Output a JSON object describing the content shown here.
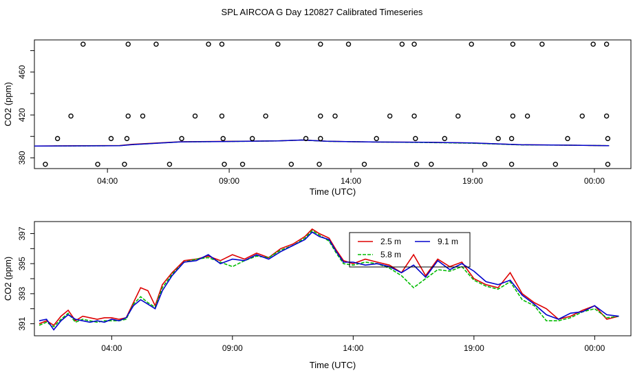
{
  "figure": {
    "title": "SPL AIRCOA G  Day 120827  Calibrated Timeseries"
  },
  "chart_data": [
    {
      "type": "scatter",
      "ylabel": "CO2 (ppm)",
      "xlabel": "Time (UTC)",
      "xlim": [
        0,
        24.5
      ],
      "ylim": [
        370,
        490
      ],
      "x_ticks": [
        3,
        8,
        13,
        18,
        23
      ],
      "x_tick_labels": [
        "04:00",
        "09:00",
        "14:00",
        "19:00",
        "00:00"
      ],
      "y_ticks": [
        380,
        420,
        460
      ],
      "y_tick_labels": [
        "380",
        "420",
        "460"
      ],
      "grid": false,
      "colors": {
        "2.5 m": "#dd0000",
        "5.8 m": "#00bb00",
        "9.1 m": "#0000cc",
        "markers": "#000000"
      },
      "markers": [
        {
          "x": 2.0,
          "y": 486
        },
        {
          "x": 3.85,
          "y": 486
        },
        {
          "x": 5.0,
          "y": 486
        },
        {
          "x": 7.15,
          "y": 486
        },
        {
          "x": 7.7,
          "y": 486
        },
        {
          "x": 10.0,
          "y": 486
        },
        {
          "x": 11.75,
          "y": 486
        },
        {
          "x": 12.9,
          "y": 486
        },
        {
          "x": 15.1,
          "y": 486
        },
        {
          "x": 15.6,
          "y": 486
        },
        {
          "x": 17.95,
          "y": 486
        },
        {
          "x": 19.65,
          "y": 486
        },
        {
          "x": 20.85,
          "y": 486
        },
        {
          "x": 22.95,
          "y": 486
        },
        {
          "x": 23.5,
          "y": 486
        },
        {
          "x": 1.5,
          "y": 419
        },
        {
          "x": 3.85,
          "y": 419
        },
        {
          "x": 4.45,
          "y": 419
        },
        {
          "x": 6.6,
          "y": 419
        },
        {
          "x": 7.7,
          "y": 419
        },
        {
          "x": 9.5,
          "y": 419
        },
        {
          "x": 11.75,
          "y": 419
        },
        {
          "x": 12.35,
          "y": 419
        },
        {
          "x": 14.6,
          "y": 419
        },
        {
          "x": 15.6,
          "y": 419
        },
        {
          "x": 17.4,
          "y": 419
        },
        {
          "x": 19.65,
          "y": 419
        },
        {
          "x": 20.25,
          "y": 419
        },
        {
          "x": 22.5,
          "y": 419
        },
        {
          "x": 23.5,
          "y": 419
        },
        {
          "x": 0.95,
          "y": 398
        },
        {
          "x": 3.15,
          "y": 398
        },
        {
          "x": 3.8,
          "y": 398
        },
        {
          "x": 6.05,
          "y": 398
        },
        {
          "x": 7.75,
          "y": 398
        },
        {
          "x": 8.95,
          "y": 398
        },
        {
          "x": 11.15,
          "y": 398
        },
        {
          "x": 11.75,
          "y": 398
        },
        {
          "x": 14.05,
          "y": 398
        },
        {
          "x": 15.65,
          "y": 398
        },
        {
          "x": 16.85,
          "y": 398
        },
        {
          "x": 19.05,
          "y": 398
        },
        {
          "x": 19.6,
          "y": 398
        },
        {
          "x": 21.9,
          "y": 398
        },
        {
          "x": 23.55,
          "y": 398
        },
        {
          "x": 0.45,
          "y": 374
        },
        {
          "x": 2.6,
          "y": 374
        },
        {
          "x": 3.7,
          "y": 374
        },
        {
          "x": 5.55,
          "y": 374
        },
        {
          "x": 7.8,
          "y": 374
        },
        {
          "x": 8.55,
          "y": 374
        },
        {
          "x": 10.55,
          "y": 374
        },
        {
          "x": 11.7,
          "y": 374
        },
        {
          "x": 13.55,
          "y": 374
        },
        {
          "x": 15.7,
          "y": 374
        },
        {
          "x": 16.3,
          "y": 374
        },
        {
          "x": 18.5,
          "y": 374
        },
        {
          "x": 19.6,
          "y": 374
        },
        {
          "x": 21.4,
          "y": 374
        },
        {
          "x": 23.55,
          "y": 374
        }
      ],
      "series": [
        {
          "name": "2.5 m",
          "color": "#dd0000",
          "x": [
            0,
            2,
            3.5,
            4,
            6,
            8,
            10,
            11,
            12,
            14,
            16,
            18,
            20,
            22,
            23.6
          ],
          "values": [
            391,
            391.3,
            391.5,
            392.6,
            395.0,
            395.4,
            395.8,
            396.6,
            395.5,
            394.8,
            394.6,
            393.8,
            392.2,
            391.8,
            391.4
          ]
        },
        {
          "name": "5.8 m",
          "color": "#00bb00",
          "x": [
            0,
            2,
            3.5,
            4,
            6,
            8,
            10,
            11,
            12,
            14,
            16,
            18,
            20,
            22,
            23.6
          ],
          "values": [
            391,
            391.2,
            391.4,
            392.3,
            394.9,
            395.3,
            395.8,
            396.6,
            395.4,
            394.8,
            394.3,
            393.6,
            392.1,
            391.8,
            391.4
          ]
        },
        {
          "name": "9.1 m",
          "color": "#0000cc",
          "x": [
            0,
            2,
            3.5,
            4,
            6,
            8,
            10,
            11,
            12,
            14,
            16,
            18,
            20,
            22,
            23.6
          ],
          "values": [
            391,
            391.2,
            391.4,
            392.3,
            394.9,
            395.3,
            395.8,
            396.6,
            395.5,
            394.8,
            394.6,
            393.9,
            392.2,
            391.8,
            391.4
          ]
        }
      ]
    },
    {
      "type": "line",
      "ylabel": "CO2 (ppm)",
      "xlabel": "Time (UTC)",
      "xlim": [
        -0.2,
        24.5
      ],
      "ylim": [
        390.2,
        397.8
      ],
      "x_ticks": [
        3,
        8,
        13,
        18,
        23
      ],
      "x_tick_labels": [
        "04:00",
        "09:00",
        "14:00",
        "19:00",
        "00:00"
      ],
      "y_ticks": [
        391,
        393,
        395,
        397
      ],
      "y_tick_labels": [
        "391",
        "393",
        "395",
        "397"
      ],
      "grid": false,
      "legend": {
        "placement": "top-right-center",
        "entries": [
          "2.5 m",
          "5.8 m",
          "9.1 m"
        ]
      },
      "series": [
        {
          "name": "2.5 m",
          "color": "#dd0000",
          "x": [
            0,
            0.3,
            0.6,
            0.9,
            1.2,
            1.5,
            1.8,
            2.1,
            2.4,
            2.7,
            3.0,
            3.3,
            3.6,
            3.9,
            4.2,
            4.5,
            4.8,
            5.1,
            5.5,
            6.0,
            6.5,
            7.0,
            7.5,
            8.0,
            8.5,
            9.0,
            9.5,
            10.0,
            10.5,
            11.0,
            11.3,
            11.6,
            12.0,
            12.3,
            12.6,
            13.0,
            13.5,
            14.0,
            14.5,
            15.0,
            15.5,
            16.0,
            16.5,
            17.0,
            17.5,
            18.0,
            18.5,
            19.0,
            19.5,
            20.0,
            20.5,
            21.0,
            21.5,
            22.0,
            22.5,
            23.0,
            23.5,
            24.0
          ],
          "values": [
            391.0,
            391.2,
            390.9,
            391.5,
            391.9,
            391.2,
            391.5,
            391.4,
            391.3,
            391.4,
            391.4,
            391.3,
            391.4,
            392.4,
            393.4,
            393.2,
            392.2,
            393.6,
            394.4,
            395.2,
            395.3,
            395.5,
            395.2,
            395.6,
            395.3,
            395.7,
            395.4,
            396.0,
            396.3,
            396.8,
            397.3,
            397.0,
            396.7,
            395.9,
            395.2,
            395.0,
            395.3,
            395.1,
            394.9,
            394.4,
            395.6,
            394.2,
            395.3,
            394.8,
            395.1,
            394.0,
            393.6,
            393.4,
            394.4,
            393.0,
            392.4,
            392.0,
            391.3,
            391.5,
            391.9,
            392.2,
            391.3,
            391.5
          ]
        },
        {
          "name": "5.8 m",
          "color": "#00bb00",
          "x": [
            0,
            0.3,
            0.6,
            0.9,
            1.2,
            1.5,
            1.8,
            2.1,
            2.4,
            2.7,
            3.0,
            3.3,
            3.6,
            3.9,
            4.2,
            4.5,
            4.8,
            5.1,
            5.5,
            6.0,
            6.5,
            7.0,
            7.5,
            8.0,
            8.5,
            9.0,
            9.5,
            10.0,
            10.5,
            11.0,
            11.3,
            11.6,
            12.0,
            12.3,
            12.6,
            13.0,
            13.5,
            14.0,
            14.5,
            15.0,
            15.5,
            16.0,
            16.5,
            17.0,
            17.5,
            18.0,
            18.5,
            19.0,
            19.5,
            20.0,
            20.5,
            21.0,
            21.5,
            22.0,
            22.5,
            23.0,
            23.5,
            24.0
          ],
          "values": [
            390.9,
            391.1,
            390.8,
            391.3,
            391.7,
            391.1,
            391.3,
            391.2,
            391.1,
            391.2,
            391.2,
            391.2,
            391.3,
            392.3,
            392.8,
            392.4,
            392.1,
            393.4,
            394.3,
            395.1,
            395.3,
            395.4,
            395.1,
            394.8,
            395.2,
            395.5,
            395.4,
            395.9,
            396.2,
            396.7,
            397.2,
            396.9,
            396.5,
            395.7,
            395.0,
            394.9,
            395.1,
            395.0,
            394.7,
            394.2,
            393.4,
            394.0,
            394.6,
            394.5,
            394.8,
            393.9,
            393.5,
            393.3,
            393.8,
            392.6,
            392.2,
            391.2,
            391.2,
            391.4,
            391.8,
            392.0,
            391.4,
            391.5
          ]
        },
        {
          "name": "9.1 m",
          "color": "#0000cc",
          "x": [
            0,
            0.3,
            0.6,
            0.9,
            1.2,
            1.5,
            1.8,
            2.1,
            2.4,
            2.7,
            3.0,
            3.3,
            3.6,
            3.9,
            4.2,
            4.5,
            4.8,
            5.1,
            5.5,
            6.0,
            6.5,
            7.0,
            7.5,
            8.0,
            8.5,
            9.0,
            9.5,
            10.0,
            10.5,
            11.0,
            11.3,
            11.6,
            12.0,
            12.3,
            12.6,
            13.0,
            13.5,
            14.0,
            14.5,
            15.0,
            15.5,
            16.0,
            16.5,
            17.0,
            17.5,
            18.0,
            18.5,
            19.0,
            19.5,
            20.0,
            20.5,
            21.0,
            21.5,
            22.0,
            22.5,
            23.0,
            23.5,
            24.0
          ],
          "values": [
            391.2,
            391.3,
            390.6,
            391.2,
            391.6,
            391.3,
            391.2,
            391.1,
            391.2,
            391.1,
            391.3,
            391.2,
            391.4,
            392.2,
            392.6,
            392.3,
            392.0,
            393.2,
            394.2,
            395.1,
            395.2,
            395.6,
            395.0,
            395.3,
            395.2,
            395.6,
            395.3,
            395.8,
            396.2,
            396.6,
            397.1,
            396.8,
            396.6,
            395.8,
            395.1,
            395.1,
            394.9,
            395.0,
            394.8,
            394.4,
            394.9,
            394.1,
            395.2,
            394.6,
            395.0,
            394.5,
            393.8,
            393.6,
            393.9,
            392.9,
            392.3,
            391.6,
            391.3,
            391.7,
            391.8,
            392.2,
            391.6,
            391.5
          ]
        }
      ]
    }
  ]
}
